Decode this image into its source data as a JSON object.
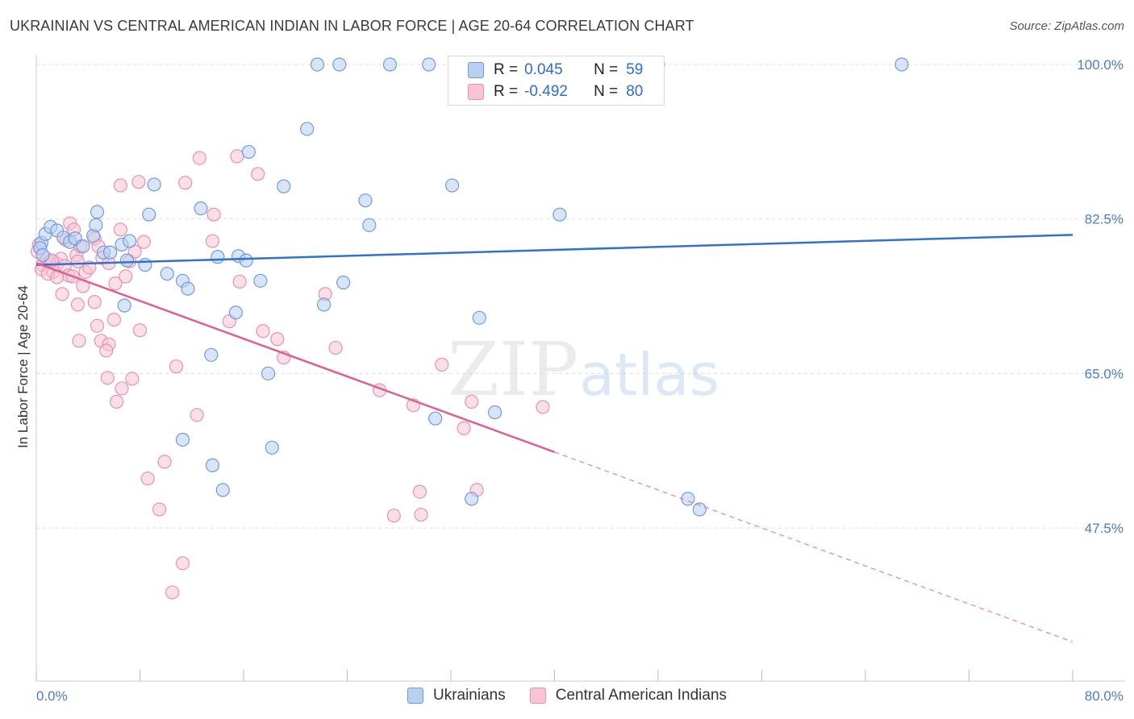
{
  "title": "UKRAINIAN VS CENTRAL AMERICAN INDIAN IN LABOR FORCE | AGE 20-64 CORRELATION CHART",
  "source": "Source: ZipAtlas.com",
  "watermark": {
    "zip": "ZIP",
    "atlas": "atlas"
  },
  "legend": {
    "r_label": "R =",
    "n_label": "N =",
    "items": [
      {
        "name": "Ukrainians",
        "r": "0.045",
        "n": "59",
        "fill": "#b8d0f2",
        "stroke": "#6f9ae0"
      },
      {
        "name": "Central American Indians",
        "r": "-0.492",
        "n": "80",
        "fill": "#f8c4d4",
        "stroke": "#e892ae"
      }
    ]
  },
  "colors": {
    "blue_line": "#2f72d0",
    "pink_line": "#e05f90",
    "tick_text": "#4a7bd0",
    "grid": "#dddddd"
  },
  "chart_data": {
    "type": "scatter",
    "ylabel": "In Labor Force | Age 20-64",
    "xlim": [
      0,
      80
    ],
    "ylim": [
      30,
      101
    ],
    "x_tick_labels": [
      "0.0%",
      "80.0%"
    ],
    "y_ticks": [
      47.5,
      65.0,
      82.5,
      100.0
    ],
    "y_tick_labels": [
      "47.5%",
      "65.0%",
      "82.5%",
      "100.0%"
    ],
    "grid": true,
    "legend_position": "top-center",
    "series": [
      {
        "name": "Ukrainians",
        "points": [
          [
            0.4,
            79.8
          ],
          [
            0.7,
            80.8
          ],
          [
            1.1,
            81.6
          ],
          [
            1.6,
            81.2
          ],
          [
            2.1,
            80.4
          ],
          [
            2.6,
            79.9
          ],
          [
            3.0,
            80.3
          ],
          [
            3.6,
            79.4
          ],
          [
            4.4,
            80.6
          ],
          [
            4.6,
            81.8
          ],
          [
            5.2,
            78.7
          ],
          [
            5.7,
            78.7
          ],
          [
            6.6,
            79.6
          ],
          [
            7.2,
            80.0
          ],
          [
            4.7,
            83.3
          ],
          [
            8.7,
            83.0
          ],
          [
            9.1,
            86.4
          ],
          [
            12.7,
            83.7
          ],
          [
            7.0,
            77.8
          ],
          [
            8.4,
            77.3
          ],
          [
            10.1,
            76.3
          ],
          [
            11.3,
            75.5
          ],
          [
            11.7,
            74.6
          ],
          [
            14.0,
            78.2
          ],
          [
            15.6,
            78.3
          ],
          [
            16.2,
            77.8
          ],
          [
            17.3,
            75.5
          ],
          [
            15.4,
            71.9
          ],
          [
            13.5,
            67.1
          ],
          [
            17.9,
            65.0
          ],
          [
            6.8,
            72.7
          ],
          [
            11.3,
            57.5
          ],
          [
            13.6,
            54.6
          ],
          [
            14.4,
            51.8
          ],
          [
            18.2,
            56.6
          ],
          [
            16.4,
            90.1
          ],
          [
            19.1,
            86.2
          ],
          [
            20.9,
            92.7
          ],
          [
            25.4,
            84.6
          ],
          [
            25.7,
            81.8
          ],
          [
            22.2,
            72.8
          ],
          [
            23.7,
            75.3
          ],
          [
            32.1,
            86.3
          ],
          [
            30.8,
            59.9
          ],
          [
            34.2,
            71.3
          ],
          [
            35.4,
            60.6
          ],
          [
            33.6,
            50.8
          ],
          [
            40.4,
            83.0
          ],
          [
            50.3,
            50.8
          ],
          [
            51.2,
            49.6
          ],
          [
            21.7,
            100.0
          ],
          [
            23.4,
            100.0
          ],
          [
            27.3,
            100.0
          ],
          [
            30.3,
            100.0
          ],
          [
            44.2,
            100.0
          ],
          [
            48.0,
            100.0
          ],
          [
            66.8,
            100.0
          ],
          [
            0.3,
            79.2
          ],
          [
            0.5,
            78.4
          ]
        ]
      },
      {
        "name": "Central American Indians",
        "points": [
          [
            0.2,
            79.6
          ],
          [
            0.5,
            77.3
          ],
          [
            0.8,
            78.0
          ],
          [
            1.1,
            77.7
          ],
          [
            1.3,
            76.5
          ],
          [
            1.6,
            77.4
          ],
          [
            1.9,
            78.0
          ],
          [
            2.2,
            77.2
          ],
          [
            2.5,
            76.1
          ],
          [
            2.8,
            76.0
          ],
          [
            3.1,
            78.4
          ],
          [
            3.4,
            79.4
          ],
          [
            0.4,
            76.8
          ],
          [
            0.9,
            76.3
          ],
          [
            1.2,
            77.8
          ],
          [
            1.6,
            75.9
          ],
          [
            2.0,
            74.0
          ],
          [
            2.3,
            80.1
          ],
          [
            2.6,
            82.0
          ],
          [
            2.9,
            81.3
          ],
          [
            3.2,
            77.7
          ],
          [
            3.6,
            74.9
          ],
          [
            3.8,
            76.5
          ],
          [
            4.1,
            77.0
          ],
          [
            4.5,
            80.3
          ],
          [
            4.8,
            79.4
          ],
          [
            5.1,
            78.1
          ],
          [
            5.6,
            77.5
          ],
          [
            6.1,
            75.2
          ],
          [
            6.5,
            81.3
          ],
          [
            6.9,
            76.0
          ],
          [
            7.2,
            77.7
          ],
          [
            7.6,
            78.8
          ],
          [
            8.3,
            79.9
          ],
          [
            6.5,
            86.3
          ],
          [
            7.9,
            86.7
          ],
          [
            11.5,
            86.6
          ],
          [
            12.6,
            89.4
          ],
          [
            13.7,
            83.0
          ],
          [
            13.6,
            80.0
          ],
          [
            15.5,
            89.6
          ],
          [
            17.1,
            87.6
          ],
          [
            15.7,
            75.4
          ],
          [
            17.5,
            69.8
          ],
          [
            18.6,
            68.9
          ],
          [
            19.1,
            66.8
          ],
          [
            22.3,
            74.0
          ],
          [
            23.1,
            67.9
          ],
          [
            14.9,
            70.9
          ],
          [
            3.2,
            72.8
          ],
          [
            4.5,
            73.1
          ],
          [
            4.7,
            70.4
          ],
          [
            5.0,
            68.7
          ],
          [
            5.5,
            64.5
          ],
          [
            6.2,
            61.8
          ],
          [
            6.6,
            63.3
          ],
          [
            7.4,
            64.4
          ],
          [
            8.0,
            69.9
          ],
          [
            3.3,
            68.7
          ],
          [
            5.6,
            68.3
          ],
          [
            5.4,
            67.6
          ],
          [
            6.0,
            71.1
          ],
          [
            10.8,
            65.8
          ],
          [
            12.4,
            60.3
          ],
          [
            9.9,
            55.0
          ],
          [
            8.6,
            53.1
          ],
          [
            9.5,
            49.6
          ],
          [
            11.3,
            43.5
          ],
          [
            10.5,
            40.2
          ],
          [
            26.5,
            63.1
          ],
          [
            29.1,
            61.4
          ],
          [
            31.3,
            66.0
          ],
          [
            33.0,
            58.8
          ],
          [
            33.6,
            61.8
          ],
          [
            39.1,
            61.2
          ],
          [
            27.6,
            48.9
          ],
          [
            29.7,
            49.0
          ],
          [
            29.6,
            51.6
          ],
          [
            34.0,
            51.8
          ],
          [
            0.1,
            78.8
          ]
        ]
      }
    ],
    "trendlines": [
      {
        "series": "Ukrainians",
        "x": [
          0,
          80
        ],
        "y": [
          77.3,
          80.7
        ]
      },
      {
        "series": "Central American Indians",
        "x": [
          0,
          40
        ],
        "y": [
          77.5,
          56.1
        ],
        "dashed_extension": {
          "x": [
            40,
            80
          ],
          "y": [
            56.1,
            34.6
          ]
        }
      }
    ]
  }
}
